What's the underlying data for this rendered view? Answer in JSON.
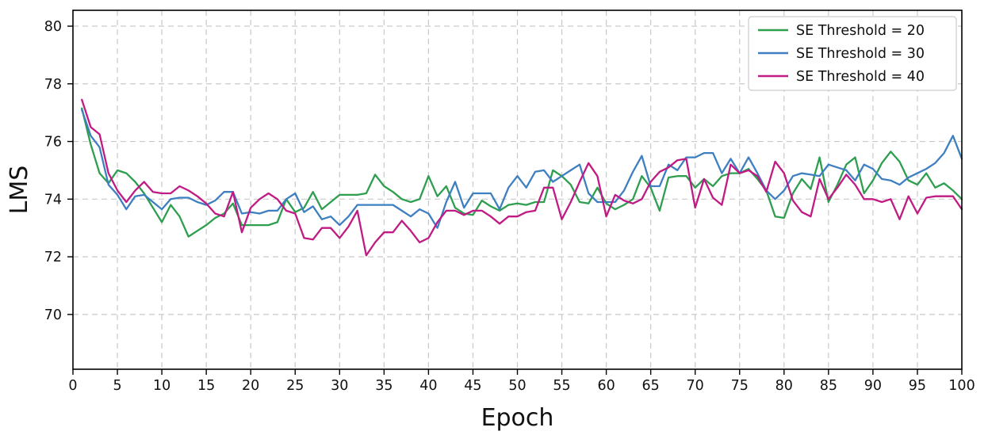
{
  "figure": {
    "xlabel": "Epoch",
    "ylabel": "LMS",
    "background": "#ffffff",
    "spine_color": "#000000",
    "grid_color": "#c9c9c9"
  },
  "axes": {
    "xlim": [
      0,
      100
    ],
    "ylim": [
      68.1,
      80.55
    ],
    "x_ticks": [
      0,
      5,
      10,
      15,
      20,
      25,
      30,
      35,
      40,
      45,
      50,
      55,
      60,
      65,
      70,
      75,
      80,
      85,
      90,
      95,
      100
    ],
    "y_ticks": [
      70,
      72,
      74,
      76,
      78,
      80
    ],
    "grid": true,
    "grid_style": "dashed"
  },
  "legend": {
    "position": "upper right",
    "border_color": "#cccccc",
    "items": [
      {
        "label": "SE Threshold = 20",
        "color": "#2e9e4f"
      },
      {
        "label": "SE Threshold = 30",
        "color": "#3d7fc1"
      },
      {
        "label": "SE Threshold = 40",
        "color": "#c01a84"
      }
    ]
  },
  "chart_data": {
    "type": "line",
    "title": "",
    "xlabel": "Epoch",
    "ylabel": "LMS",
    "xlim": [
      0,
      100
    ],
    "ylim": [
      68.1,
      80.55
    ],
    "grid": true,
    "legend_position": "upper right",
    "x": [
      1,
      2,
      3,
      4,
      5,
      6,
      7,
      8,
      9,
      10,
      11,
      12,
      13,
      14,
      15,
      16,
      17,
      18,
      19,
      20,
      21,
      22,
      23,
      24,
      25,
      26,
      27,
      28,
      29,
      30,
      31,
      32,
      33,
      34,
      35,
      36,
      37,
      38,
      39,
      40,
      41,
      42,
      43,
      44,
      45,
      46,
      47,
      48,
      49,
      50,
      51,
      52,
      53,
      54,
      55,
      56,
      57,
      58,
      59,
      60,
      61,
      62,
      63,
      64,
      65,
      66,
      67,
      68,
      69,
      70,
      71,
      72,
      73,
      74,
      75,
      76,
      77,
      78,
      79,
      80,
      81,
      82,
      83,
      84,
      85,
      86,
      87,
      88,
      89,
      90,
      91,
      92,
      93,
      94,
      95,
      96,
      97,
      98,
      99,
      100
    ],
    "series": [
      {
        "name": "SE Threshold = 20",
        "color": "#2e9e4f",
        "values": [
          77.15,
          75.9,
          74.9,
          74.55,
          75.0,
          74.9,
          74.6,
          74.2,
          73.7,
          73.2,
          73.8,
          73.4,
          72.7,
          72.9,
          73.1,
          73.35,
          73.5,
          73.85,
          73.1,
          73.1,
          73.1,
          73.1,
          73.2,
          74.0,
          73.55,
          73.7,
          74.25,
          73.65,
          73.9,
          74.15,
          74.15,
          74.15,
          74.2,
          74.85,
          74.45,
          74.25,
          74.0,
          73.9,
          74.0,
          74.8,
          74.1,
          74.45,
          73.7,
          73.5,
          73.45,
          73.95,
          73.75,
          73.6,
          73.8,
          73.85,
          73.8,
          73.9,
          73.9,
          75.0,
          74.8,
          74.5,
          73.9,
          73.85,
          74.4,
          73.85,
          73.65,
          73.8,
          74.0,
          74.8,
          74.4,
          73.6,
          74.75,
          74.8,
          74.8,
          74.4,
          74.7,
          74.45,
          74.8,
          74.9,
          74.9,
          75.05,
          74.7,
          74.3,
          73.4,
          73.35,
          74.2,
          74.7,
          74.35,
          75.45,
          73.9,
          74.5,
          75.2,
          75.45,
          74.2,
          74.65,
          75.25,
          75.65,
          75.3,
          74.65,
          74.5,
          74.9,
          74.4,
          74.55,
          74.3,
          74.0
        ]
      },
      {
        "name": "SE Threshold = 30",
        "color": "#3d7fc1",
        "values": [
          77.1,
          76.2,
          75.8,
          74.5,
          74.15,
          73.65,
          74.1,
          74.15,
          73.9,
          73.65,
          74.0,
          74.05,
          74.05,
          73.9,
          73.8,
          73.95,
          74.25,
          74.25,
          73.5,
          73.55,
          73.5,
          73.6,
          73.6,
          74.0,
          74.2,
          73.55,
          73.75,
          73.3,
          73.4,
          73.1,
          73.4,
          73.8,
          73.8,
          73.8,
          73.8,
          73.8,
          73.6,
          73.4,
          73.65,
          73.5,
          73.0,
          73.9,
          74.6,
          73.7,
          74.2,
          74.2,
          74.2,
          73.65,
          74.4,
          74.8,
          74.4,
          74.95,
          75.0,
          74.6,
          74.8,
          75.0,
          75.2,
          74.2,
          73.9,
          73.9,
          73.9,
          74.3,
          74.95,
          75.5,
          74.45,
          74.45,
          75.2,
          75.0,
          75.45,
          75.45,
          75.6,
          75.6,
          74.9,
          75.4,
          74.9,
          75.45,
          74.9,
          74.3,
          74.0,
          74.3,
          74.8,
          74.9,
          74.85,
          74.8,
          75.2,
          75.1,
          75.0,
          74.65,
          75.2,
          75.05,
          74.7,
          74.65,
          74.5,
          74.75,
          74.9,
          75.05,
          75.25,
          75.6,
          76.2,
          75.4
        ]
      },
      {
        "name": "SE Threshold = 40",
        "color": "#c01a84",
        "values": [
          77.45,
          76.5,
          76.25,
          74.9,
          74.3,
          73.9,
          74.3,
          74.6,
          74.25,
          74.2,
          74.2,
          74.45,
          74.3,
          74.1,
          73.85,
          73.5,
          73.4,
          74.25,
          72.85,
          73.7,
          74.0,
          74.2,
          74.0,
          73.6,
          73.5,
          72.65,
          72.6,
          73.0,
          73.0,
          72.65,
          73.05,
          73.6,
          72.05,
          72.5,
          72.85,
          72.85,
          73.25,
          72.9,
          72.5,
          72.65,
          73.2,
          73.6,
          73.6,
          73.45,
          73.6,
          73.6,
          73.4,
          73.15,
          73.4,
          73.4,
          73.55,
          73.6,
          74.4,
          74.4,
          73.3,
          73.9,
          74.6,
          75.25,
          74.8,
          73.4,
          74.15,
          73.95,
          73.85,
          74.0,
          74.6,
          74.95,
          75.1,
          75.35,
          75.4,
          73.7,
          74.7,
          74.05,
          73.8,
          75.2,
          74.9,
          75.0,
          74.8,
          74.25,
          75.3,
          74.9,
          73.95,
          73.55,
          73.4,
          74.7,
          74.0,
          74.4,
          74.85,
          74.5,
          74.0,
          74.0,
          73.9,
          74.0,
          73.3,
          74.1,
          73.5,
          74.05,
          74.1,
          74.1,
          74.1,
          73.65
        ]
      }
    ]
  }
}
